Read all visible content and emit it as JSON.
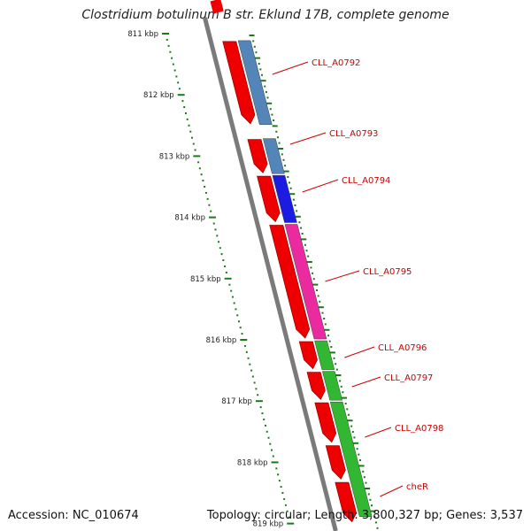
{
  "title": "Clostridium botulinum B str. Eklund 17B, complete genome",
  "accession": "Accession: NC_010674",
  "summary": "Topology: circular; Length: 3,800,327 bp; Genes: 3,537",
  "ruler": {
    "unit": "kbp",
    "ticks": [
      {
        "label": "811 kbp",
        "kbp": 811
      },
      {
        "label": "812 kbp",
        "kbp": 812
      },
      {
        "label": "813 kbp",
        "kbp": 813
      },
      {
        "label": "814 kbp",
        "kbp": 814
      },
      {
        "label": "815 kbp",
        "kbp": 815
      },
      {
        "label": "816 kbp",
        "kbp": 816
      },
      {
        "label": "817 kbp",
        "kbp": 817
      },
      {
        "label": "818 kbp",
        "kbp": 818
      },
      {
        "label": "819 kbp",
        "kbp": 819
      }
    ]
  },
  "genes": [
    {
      "label": "CLL_A0792",
      "color": "#4a7fb5",
      "start_kbp": 811.1,
      "end_kbp": 812.5
    },
    {
      "label": "CLL_A0793",
      "color": "#4a7fb5",
      "start_kbp": 812.7,
      "end_kbp": 813.3
    },
    {
      "label": "CLL_A0794",
      "color": "#1010e0",
      "start_kbp": 813.3,
      "end_kbp": 814.1
    },
    {
      "label": "CLL_A0795",
      "color": "#e8209a",
      "start_kbp": 814.1,
      "end_kbp": 816.0
    },
    {
      "label": "CLL_A0796",
      "color": "#28b428",
      "start_kbp": 816.0,
      "end_kbp": 816.5
    },
    {
      "label": "CLL_A0797",
      "color": "#28b428",
      "start_kbp": 816.5,
      "end_kbp": 817.0
    },
    {
      "label": "cheR",
      "color": "#28b428",
      "start_kbp": 817.0,
      "end_kbp": 818.9
    }
  ],
  "cds_track": {
    "color": "#ee0000",
    "segments": [
      {
        "start_kbp": 811.1,
        "end_kbp": 812.5
      },
      {
        "start_kbp": 812.7,
        "end_kbp": 813.3
      },
      {
        "start_kbp": 813.3,
        "end_kbp": 814.1
      },
      {
        "start_kbp": 814.1,
        "end_kbp": 816.0
      },
      {
        "start_kbp": 816.0,
        "end_kbp": 816.5
      },
      {
        "start_kbp": 816.5,
        "end_kbp": 817.0
      },
      {
        "start_kbp": 817.0,
        "end_kbp": 817.7
      },
      {
        "start_kbp": 817.7,
        "end_kbp": 818.3
      },
      {
        "start_kbp": 818.3,
        "end_kbp": 819.0
      }
    ]
  },
  "label_map": [
    {
      "label": "CLL_A0792"
    },
    {
      "label": "CLL_A0793"
    },
    {
      "label": "CLL_A0794"
    },
    {
      "label": "CLL_A0795"
    },
    {
      "label": "CLL_A0796"
    },
    {
      "label": "CLL_A0797"
    },
    {
      "label": "CLL_A0798"
    },
    {
      "label": "cheR"
    }
  ],
  "colors": {
    "backbone": "#7a7a7a",
    "ruler": "#1a7a1a",
    "cds": "#ee0000",
    "label": "#cc0000"
  }
}
